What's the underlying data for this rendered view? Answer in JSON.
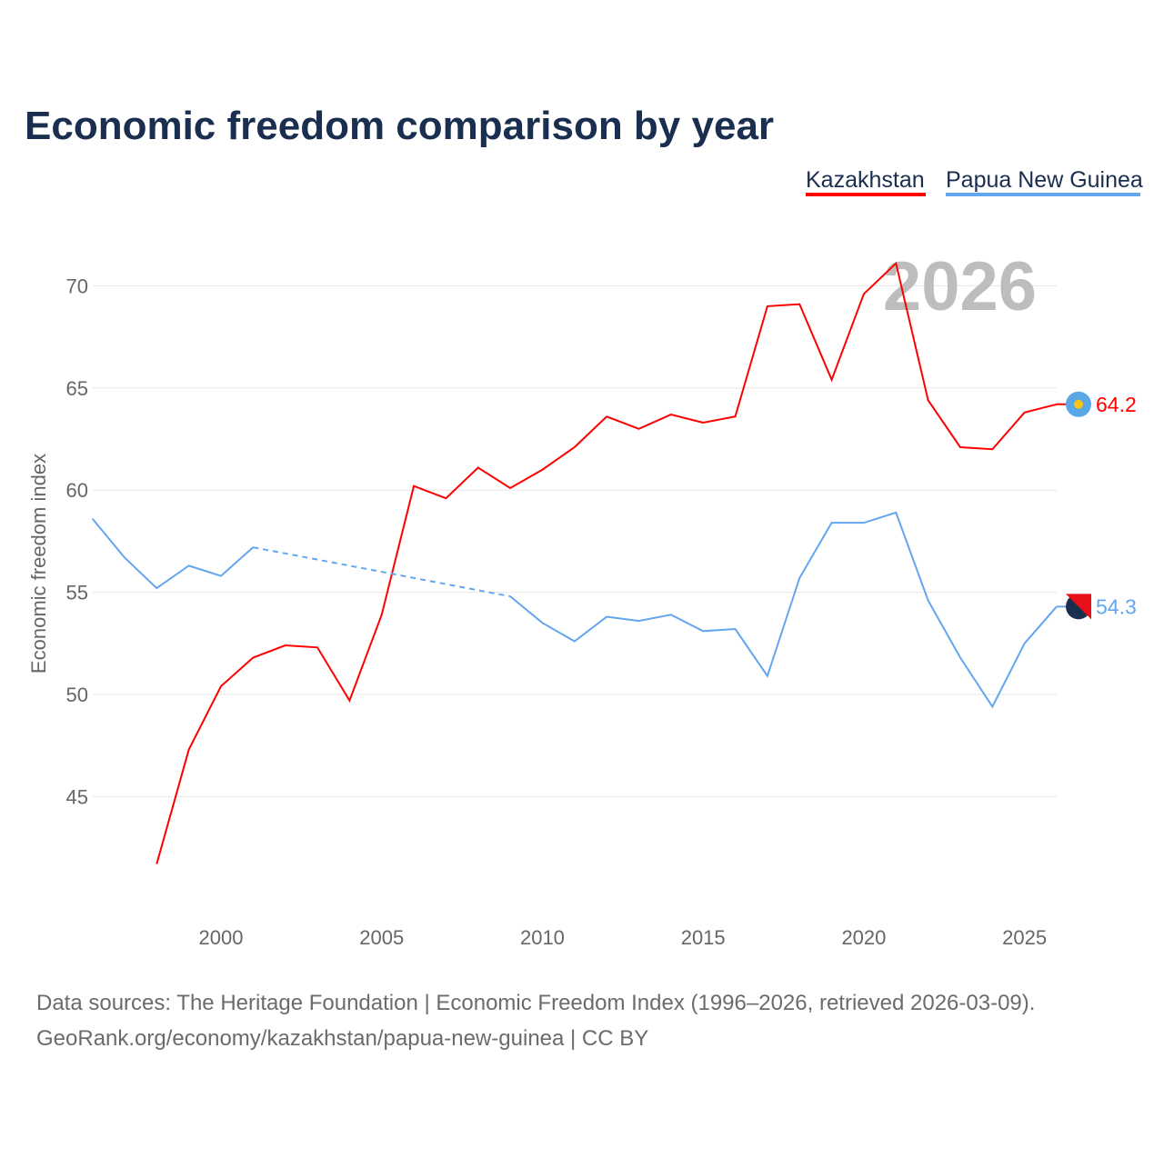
{
  "chart_data": {
    "type": "line",
    "title": "Economic freedom comparison by year",
    "ylabel": "Economic freedom index",
    "xlabel": "",
    "xlim": [
      1996,
      2026
    ],
    "ylim": [
      39.5,
      73.8
    ],
    "yticks": [
      45,
      50,
      55,
      60,
      65,
      70
    ],
    "xticks": [
      2000,
      2005,
      2010,
      2015,
      2020,
      2025
    ],
    "grid": true,
    "legend_placement": "top-right",
    "year_watermark": "2026",
    "series": [
      {
        "name": "Kazakhstan",
        "color": "#ff0000",
        "end_label": "64.2",
        "x": [
          1998,
          1999,
          2000,
          2001,
          2002,
          2003,
          2004,
          2005,
          2006,
          2007,
          2008,
          2009,
          2010,
          2011,
          2012,
          2013,
          2014,
          2015,
          2016,
          2017,
          2018,
          2019,
          2020,
          2021,
          2022,
          2023,
          2024,
          2025,
          2026
        ],
        "values": [
          41.7,
          47.3,
          50.4,
          51.8,
          52.4,
          52.3,
          49.7,
          53.9,
          60.2,
          59.6,
          61.1,
          60.1,
          61.0,
          62.1,
          63.6,
          63.0,
          63.7,
          63.3,
          63.6,
          69.0,
          69.1,
          65.4,
          69.6,
          71.1,
          64.4,
          62.1,
          62.0,
          63.8,
          64.2
        ]
      },
      {
        "name": "Papua New Guinea",
        "color": "#64a5f0",
        "end_label": "54.3",
        "x": [
          1996,
          1997,
          1998,
          1999,
          2000,
          2001,
          2009,
          2010,
          2011,
          2012,
          2013,
          2014,
          2015,
          2016,
          2017,
          2018,
          2019,
          2020,
          2021,
          2022,
          2023,
          2024,
          2025,
          2026
        ],
        "values": [
          58.6,
          56.7,
          55.2,
          56.3,
          55.8,
          57.2,
          54.8,
          53.5,
          52.6,
          53.8,
          53.6,
          53.9,
          53.1,
          53.2,
          50.9,
          55.7,
          58.4,
          58.4,
          58.9,
          54.6,
          51.8,
          49.4,
          52.5,
          54.3
        ],
        "gap": [
          2001,
          2009
        ]
      }
    ]
  },
  "footer": {
    "line1": "Data sources: The Heritage Foundation | Economic Freedom Index (1996–2026, retrieved 2026-03-09).",
    "line2": "GeoRank.org/economy/kazakhstan/papua-new-guinea | CC BY"
  }
}
